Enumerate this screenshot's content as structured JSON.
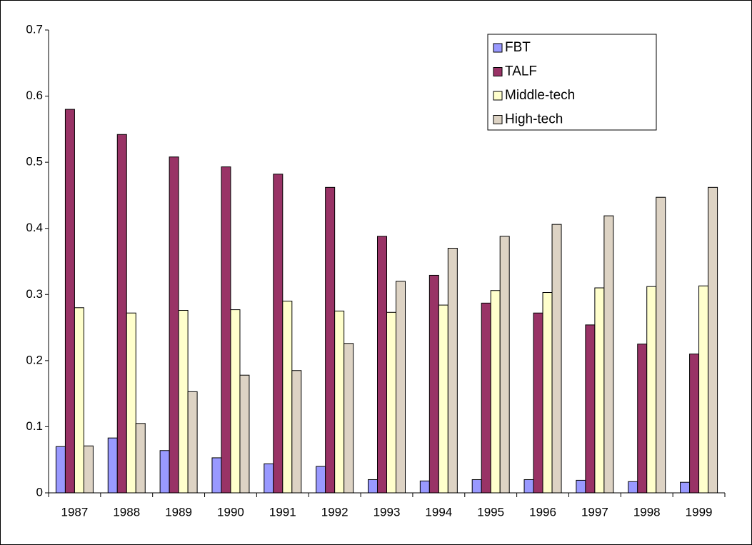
{
  "chart_data": {
    "type": "bar",
    "categories": [
      "1987",
      "1988",
      "1989",
      "1990",
      "1991",
      "1992",
      "1993",
      "1994",
      "1995",
      "1996",
      "1997",
      "1998",
      "1999"
    ],
    "series": [
      {
        "name": "FBT",
        "color": "#9999ff",
        "values": [
          0.07,
          0.083,
          0.064,
          0.053,
          0.044,
          0.04,
          0.02,
          0.018,
          0.02,
          0.02,
          0.019,
          0.017,
          0.016
        ]
      },
      {
        "name": "TALF",
        "color": "#993366",
        "values": [
          0.58,
          0.542,
          0.508,
          0.493,
          0.482,
          0.462,
          0.388,
          0.329,
          0.287,
          0.272,
          0.254,
          0.225,
          0.21
        ]
      },
      {
        "name": "Middle-tech",
        "color": "#ffffcc",
        "values": [
          0.28,
          0.272,
          0.276,
          0.277,
          0.29,
          0.275,
          0.273,
          0.284,
          0.306,
          0.303,
          0.31,
          0.312,
          0.313
        ]
      },
      {
        "name": "High-tech",
        "color": "#ddd3c4",
        "values": [
          0.071,
          0.105,
          0.153,
          0.178,
          0.185,
          0.226,
          0.32,
          0.37,
          0.388,
          0.406,
          0.419,
          0.447,
          0.462
        ]
      }
    ],
    "ylim": [
      0,
      0.7
    ],
    "yticks": [
      0,
      0.1,
      0.2,
      0.3,
      0.4,
      0.5,
      0.6,
      0.7
    ],
    "grid": false,
    "legend": "top-right"
  }
}
